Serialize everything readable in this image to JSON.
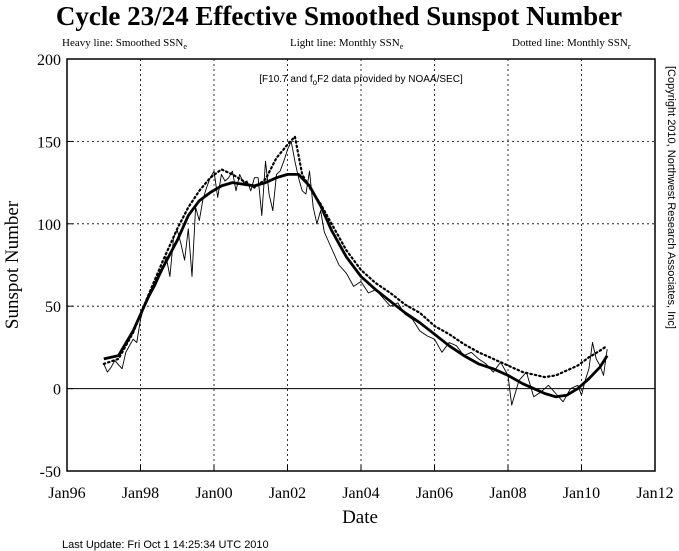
{
  "chart_data": {
    "type": "line",
    "title": "Cycle 23/24 Effective Smoothed Sunspot Number",
    "legend": {
      "heavy_label": "Heavy line:  Smoothed SSN",
      "heavy_sub": "e",
      "light_label": "Light line:  Monthly SSN",
      "light_sub": "e",
      "dotted_label": "Dotted line:  Monthly SSN",
      "dotted_sub": "r"
    },
    "annotation_prefix": "[F10.7 and f",
    "annotation_sub": "o",
    "annotation_suffix": "F2 data provided by NOAA/SEC]",
    "copyright": "[Copyright 2010, Northwest Research Associates, Inc]",
    "xlabel": "Date",
    "ylabel": "Sunspot Number",
    "footer": "Last Update: Fri Oct 1 14:25:34 UTC 2010",
    "xlim": [
      1996.0,
      2012.0
    ],
    "ylim": [
      -50,
      200
    ],
    "x_ticks": [
      {
        "value": 1996,
        "label": "Jan96"
      },
      {
        "value": 1998,
        "label": "Jan98"
      },
      {
        "value": 2000,
        "label": "Jan00"
      },
      {
        "value": 2002,
        "label": "Jan02"
      },
      {
        "value": 2004,
        "label": "Jan04"
      },
      {
        "value": 2006,
        "label": "Jan06"
      },
      {
        "value": 2008,
        "label": "Jan08"
      },
      {
        "value": 2010,
        "label": "Jan10"
      },
      {
        "value": 2012,
        "label": "Jan12"
      }
    ],
    "y_ticks": [
      -50,
      0,
      50,
      100,
      150,
      200
    ],
    "grid": true,
    "zero_line": 0,
    "series": [
      {
        "key": "smoothed",
        "style": "heavy",
        "x": [
          1997.0,
          1997.4,
          1997.8,
          1998.2,
          1998.6,
          1999.0,
          1999.3,
          1999.6,
          1999.9,
          2000.2,
          2000.5,
          2000.8,
          2001.1,
          2001.4,
          2001.7,
          2002.0,
          2002.3,
          2002.6,
          2002.9,
          2003.2,
          2003.6,
          2004.0,
          2004.4,
          2004.8,
          2005.2,
          2005.6,
          2006.0,
          2006.4,
          2006.8,
          2007.2,
          2007.6,
          2008.0,
          2008.4,
          2008.8,
          2009.0,
          2009.3,
          2009.6,
          2009.9,
          2010.2,
          2010.5,
          2010.7
        ],
        "y": [
          18,
          20,
          35,
          55,
          73,
          90,
          105,
          114,
          119,
          123,
          125,
          124,
          123,
          125,
          128,
          130,
          130,
          123,
          111,
          96,
          80,
          68,
          60,
          53,
          46,
          40,
          33,
          26,
          20,
          15,
          12,
          8,
          3,
          -1,
          -3,
          -5,
          -4,
          0,
          6,
          13,
          20
        ]
      },
      {
        "key": "monthly",
        "style": "light",
        "x": [
          1997.0,
          1997.1,
          1997.2,
          1997.3,
          1997.5,
          1997.6,
          1997.8,
          1997.9,
          1998.0,
          1998.1,
          1998.3,
          1998.4,
          1998.6,
          1998.7,
          1998.8,
          1998.9,
          1999.0,
          1999.1,
          1999.2,
          1999.3,
          1999.4,
          1999.5,
          1999.6,
          1999.7,
          1999.8,
          1999.9,
          2000.0,
          2000.1,
          2000.2,
          2000.3,
          2000.4,
          2000.5,
          2000.6,
          2000.7,
          2000.8,
          2000.9,
          2001.0,
          2001.1,
          2001.2,
          2001.3,
          2001.4,
          2001.5,
          2001.6,
          2001.7,
          2001.8,
          2001.9,
          2002.0,
          2002.1,
          2002.2,
          2002.3,
          2002.4,
          2002.5,
          2002.6,
          2002.7,
          2002.8,
          2002.9,
          2003.0,
          2003.2,
          2003.4,
          2003.6,
          2003.8,
          2004.0,
          2004.2,
          2004.4,
          2004.6,
          2004.8,
          2005.0,
          2005.2,
          2005.4,
          2005.6,
          2005.8,
          2006.0,
          2006.2,
          2006.4,
          2006.6,
          2006.8,
          2007.0,
          2007.2,
          2007.4,
          2007.6,
          2007.8,
          2008.0,
          2008.1,
          2008.3,
          2008.5,
          2008.7,
          2008.9,
          2009.1,
          2009.3,
          2009.5,
          2009.7,
          2009.9,
          2010.0,
          2010.1,
          2010.2,
          2010.3,
          2010.4,
          2010.5,
          2010.6,
          2010.7
        ],
        "y": [
          15,
          10,
          13,
          17,
          12,
          22,
          30,
          28,
          42,
          50,
          58,
          62,
          72,
          80,
          68,
          92,
          96,
          88,
          78,
          97,
          68,
          110,
          102,
          115,
          122,
          128,
          132,
          116,
          130,
          126,
          128,
          132,
          120,
          130,
          125,
          126,
          120,
          128,
          128,
          105,
          138,
          118,
          108,
          130,
          132,
          138,
          145,
          150,
          138,
          128,
          120,
          118,
          132,
          110,
          100,
          108,
          95,
          85,
          75,
          70,
          62,
          65,
          58,
          60,
          55,
          50,
          52,
          45,
          42,
          35,
          32,
          30,
          22,
          28,
          26,
          20,
          22,
          18,
          15,
          10,
          16,
          8,
          -10,
          5,
          10,
          -5,
          -2,
          2,
          -3,
          -8,
          0,
          2,
          -4,
          5,
          12,
          28,
          18,
          14,
          8,
          24
        ]
      },
      {
        "key": "dotted",
        "style": "dotted",
        "x": [
          1997.0,
          1997.4,
          1997.8,
          1998.2,
          1998.6,
          1999.0,
          1999.3,
          1999.6,
          1999.9,
          2000.2,
          2000.5,
          2000.8,
          2001.1,
          2001.4,
          2001.7,
          2002.0,
          2002.2,
          2002.4,
          2002.6,
          2002.9,
          2003.2,
          2003.6,
          2004.0,
          2004.4,
          2004.8,
          2005.2,
          2005.6,
          2006.0,
          2006.4,
          2006.8,
          2007.2,
          2007.6,
          2008.0,
          2008.4,
          2008.8,
          2009.0,
          2009.3,
          2009.6,
          2009.9,
          2010.2,
          2010.5,
          2010.7
        ],
        "y": [
          15,
          18,
          34,
          56,
          77,
          97,
          110,
          120,
          128,
          133,
          130,
          126,
          122,
          127,
          140,
          148,
          153,
          130,
          122,
          112,
          100,
          84,
          72,
          64,
          58,
          51,
          46,
          38,
          33,
          27,
          22,
          18,
          14,
          10,
          8,
          7,
          8,
          11,
          14,
          19,
          23,
          26
        ]
      }
    ]
  }
}
